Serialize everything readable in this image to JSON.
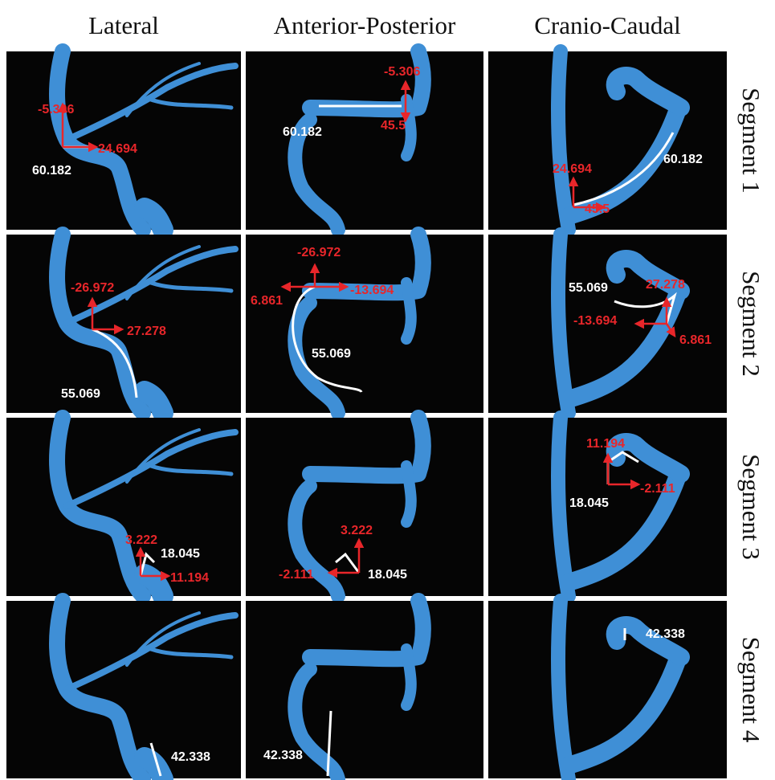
{
  "columns": [
    "Lateral",
    "Anterior-Posterior",
    "Cranio-Caudal"
  ],
  "rows": [
    {
      "label": "Segment 1",
      "cells": [
        {
          "white": "60.182",
          "red": [
            "-5.306",
            "24.694"
          ]
        },
        {
          "white": "60.182",
          "red": [
            "-5.306",
            "45.5"
          ]
        },
        {
          "white": "60.182",
          "red": [
            "24.694",
            "45.5"
          ]
        }
      ]
    },
    {
      "label": "Segment 2",
      "cells": [
        {
          "white": "55.069",
          "red": [
            "-26.972",
            "27.278"
          ]
        },
        {
          "white": "55.069",
          "red": [
            "-26.972",
            "6.861",
            "-13.694"
          ]
        },
        {
          "white": "55.069",
          "red": [
            "27.278",
            "-13.694",
            "6.861"
          ]
        }
      ]
    },
    {
      "label": "Segment 3",
      "cells": [
        {
          "white": "18.045",
          "red": [
            "3.222",
            "11.194"
          ]
        },
        {
          "white": "18.045",
          "red": [
            "3.222",
            "-2.111"
          ]
        },
        {
          "white": "18.045",
          "red": [
            "11.194",
            "-2.111"
          ]
        }
      ]
    },
    {
      "label": "Segment 4",
      "cells": [
        {
          "white": "42.338",
          "red": []
        },
        {
          "white": "42.338",
          "red": []
        },
        {
          "white": "42.338",
          "red": []
        }
      ]
    }
  ]
}
